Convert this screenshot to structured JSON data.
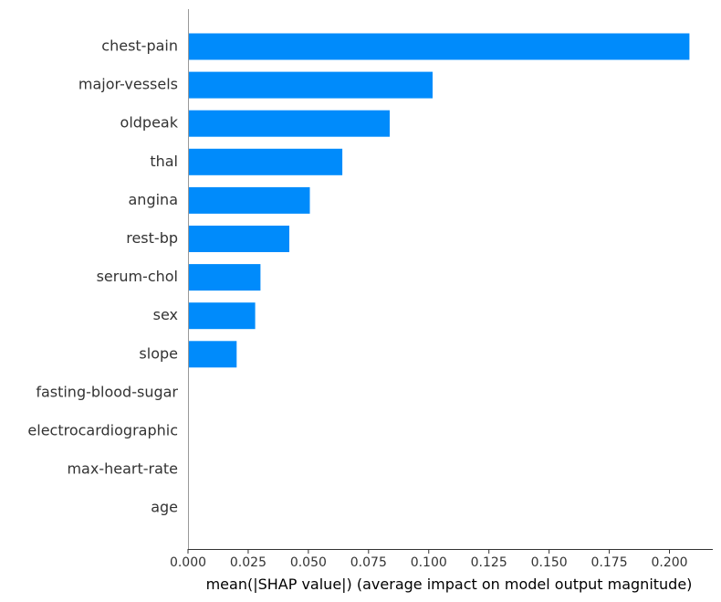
{
  "chart_data": {
    "type": "bar",
    "orientation": "horizontal",
    "categories": [
      "chest-pain",
      "major-vessels",
      "oldpeak",
      "thal",
      "angina",
      "rest-bp",
      "serum-chol",
      "sex",
      "slope",
      "fasting-blood-sugar",
      "electrocardiographic",
      "max-heart-rate",
      "age"
    ],
    "values": [
      0.2083,
      0.1016,
      0.0838,
      0.0641,
      0.0506,
      0.0421,
      0.0301,
      0.0279,
      0.0202,
      0,
      0,
      0,
      0
    ],
    "xlabel": "mean(|SHAP value|) (average impact on model output magnitude)",
    "ylabel": "",
    "xlim": [
      0,
      0.218
    ],
    "xticks": [
      0.0,
      0.025,
      0.05,
      0.075,
      0.1,
      0.125,
      0.15,
      0.175,
      0.2
    ],
    "xtick_labels": [
      "0.000",
      "0.025",
      "0.050",
      "0.075",
      "0.100",
      "0.125",
      "0.150",
      "0.175",
      "0.200"
    ],
    "bar_color": "#008bfb",
    "grid": false,
    "legend": "none"
  }
}
